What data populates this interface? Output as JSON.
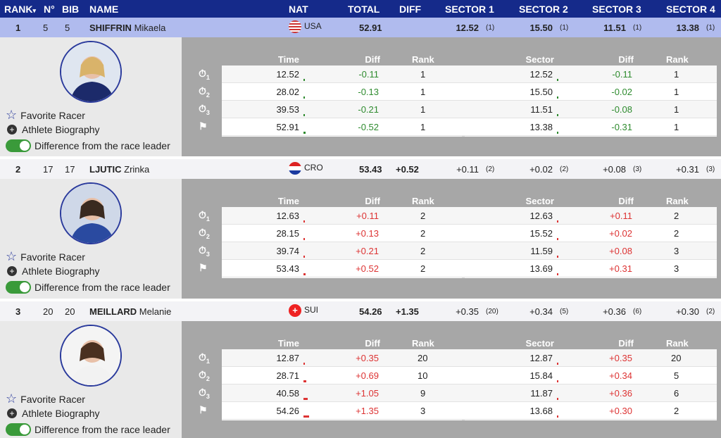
{
  "header": {
    "rank": "RANK",
    "sort_icon": "▾",
    "no": "N°",
    "bib": "BIB",
    "name": "NAME",
    "nat": "NAT",
    "total": "TOTAL",
    "diff": "DIFF",
    "s1": "SECTOR 1",
    "s2": "SECTOR 2",
    "s3": "SECTOR 3",
    "s4": "SECTOR 4"
  },
  "detail_headers": {
    "time": "Time",
    "diff": "Diff",
    "rank": "Rank",
    "sector": "Sector",
    "sdiff": "Diff",
    "srank": "Rank"
  },
  "options": {
    "favorite": "Favorite Racer",
    "bio": "Athlete Biography",
    "diff_leader": "Difference from the race leader"
  },
  "colors": {
    "header": "#152a8a",
    "selected_row": "#b0bbee",
    "positive": "#d33",
    "negative": "#2e8b2e"
  },
  "racers": [
    {
      "rank": "1",
      "no": "5",
      "bib": "5",
      "last": "SHIFFRIN",
      "first": "Mikaela",
      "nat": "USA",
      "total": "52.91",
      "diff": "",
      "sectors": [
        [
          "12.52",
          "(1)"
        ],
        [
          "15.50",
          "(1)"
        ],
        [
          "11.51",
          "(1)"
        ],
        [
          "13.38",
          "(1)"
        ]
      ],
      "splits": [
        [
          "12.52",
          "-0.11",
          "1",
          "12.52",
          "-0.11",
          "1"
        ],
        [
          "28.02",
          "-0.13",
          "1",
          "15.50",
          "-0.02",
          "1"
        ],
        [
          "39.53",
          "-0.21",
          "1",
          "11.51",
          "-0.08",
          "1"
        ],
        [
          "52.91",
          "-0.52",
          "1",
          "13.38",
          "-0.31",
          "1"
        ]
      ]
    },
    {
      "rank": "2",
      "no": "17",
      "bib": "17",
      "last": "LJUTIC",
      "first": "Zrinka",
      "nat": "CRO",
      "total": "53.43",
      "diff": "+0.52",
      "sectors": [
        [
          "+0.11",
          "(2)"
        ],
        [
          "+0.02",
          "(2)"
        ],
        [
          "+0.08",
          "(3)"
        ],
        [
          "+0.31",
          "(3)"
        ]
      ],
      "splits": [
        [
          "12.63",
          "+0.11",
          "2",
          "12.63",
          "+0.11",
          "2"
        ],
        [
          "28.15",
          "+0.13",
          "2",
          "15.52",
          "+0.02",
          "2"
        ],
        [
          "39.74",
          "+0.21",
          "2",
          "11.59",
          "+0.08",
          "3"
        ],
        [
          "53.43",
          "+0.52",
          "2",
          "13.69",
          "+0.31",
          "3"
        ]
      ]
    },
    {
      "rank": "3",
      "no": "20",
      "bib": "20",
      "last": "MEILLARD",
      "first": "Melanie",
      "nat": "SUI",
      "total": "54.26",
      "diff": "+1.35",
      "sectors": [
        [
          "+0.35",
          "(20)"
        ],
        [
          "+0.34",
          "(5)"
        ],
        [
          "+0.36",
          "(6)"
        ],
        [
          "+0.30",
          "(2)"
        ]
      ],
      "splits": [
        [
          "12.87",
          "+0.35",
          "20",
          "12.87",
          "+0.35",
          "20"
        ],
        [
          "28.71",
          "+0.69",
          "10",
          "15.84",
          "+0.34",
          "5"
        ],
        [
          "40.58",
          "+1.05",
          "9",
          "11.87",
          "+0.36",
          "6"
        ],
        [
          "54.26",
          "+1.35",
          "3",
          "13.68",
          "+0.30",
          "2"
        ]
      ]
    }
  ],
  "split_icons": [
    {
      "icon": "stopwatch-icon",
      "sub": "1"
    },
    {
      "icon": "stopwatch-icon",
      "sub": "2"
    },
    {
      "icon": "stopwatch-icon",
      "sub": "3"
    },
    {
      "icon": "finish-flag-icon",
      "sub": ""
    }
  ]
}
